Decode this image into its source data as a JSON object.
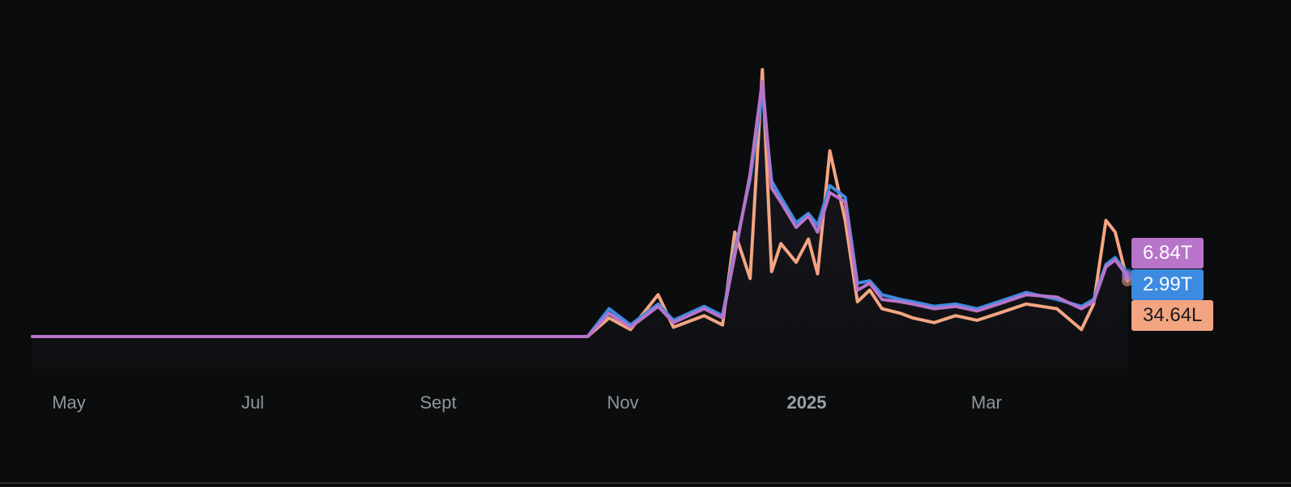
{
  "chart_data": {
    "type": "line",
    "x_ticks": [
      "May",
      "Jul",
      "Sept",
      "Nov",
      "2025",
      "Mar"
    ],
    "grid": false,
    "legend": "none",
    "x": [
      "2024-04-20",
      "2024-05-01",
      "2024-06-01",
      "2024-07-01",
      "2024-08-01",
      "2024-09-01",
      "2024-10-01",
      "2024-10-18",
      "2024-10-25",
      "2024-11-01",
      "2024-11-10",
      "2024-11-15",
      "2024-11-25",
      "2024-12-01",
      "2024-12-05",
      "2024-12-10",
      "2024-12-14",
      "2024-12-17",
      "2024-12-20",
      "2024-12-25",
      "2024-12-29",
      "2025-01-01",
      "2025-01-05",
      "2025-01-10",
      "2025-01-14",
      "2025-01-18",
      "2025-01-22",
      "2025-01-28",
      "2025-02-01",
      "2025-02-08",
      "2025-02-15",
      "2025-02-22",
      "2025-03-01",
      "2025-03-10",
      "2025-03-20",
      "2025-03-28",
      "2025-04-01",
      "2025-04-05",
      "2025-04-08",
      "2025-04-12"
    ],
    "series": [
      {
        "color": "#b774c9",
        "end_label": "6.84T",
        "values": [
          0,
          0,
          0,
          0,
          0,
          0,
          0,
          0,
          10,
          4,
          13,
          6,
          12,
          8,
          35,
          70,
          110,
          64,
          58,
          47,
          52,
          45,
          62,
          58,
          20,
          23,
          16,
          15,
          14,
          12,
          13,
          11,
          14,
          18,
          17,
          12,
          15,
          30,
          33,
          26
        ]
      },
      {
        "color": "#3d8be0",
        "end_label": "2.99T",
        "values": [
          0,
          0,
          0,
          0,
          0,
          0,
          0,
          0,
          12,
          5,
          14,
          7,
          13,
          9,
          37,
          68,
          105,
          67,
          60,
          49,
          53,
          48,
          65,
          60,
          23,
          24,
          18,
          16,
          15,
          13,
          14,
          12,
          15,
          19,
          16,
          13,
          16,
          31,
          34,
          27
        ]
      },
      {
        "color": "#f3a582",
        "end_label": "34.64L",
        "values": [
          0,
          0,
          0,
          0,
          0,
          0,
          0,
          0,
          8,
          3,
          18,
          4,
          9,
          5,
          45,
          25,
          115,
          28,
          40,
          32,
          42,
          27,
          80,
          50,
          15,
          20,
          12,
          10,
          8,
          6,
          9,
          7,
          10,
          14,
          12,
          3,
          14,
          50,
          45,
          24
        ]
      }
    ]
  }
}
